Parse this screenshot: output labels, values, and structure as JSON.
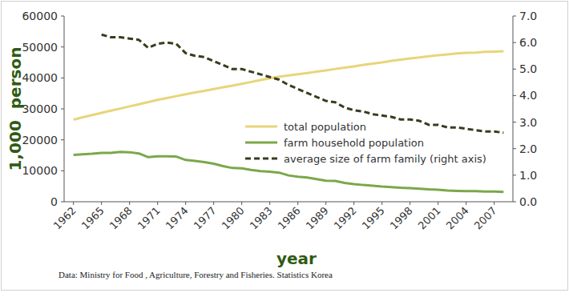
{
  "chart_data": {
    "type": "line",
    "x_label": "year",
    "y_label": "1,000  person",
    "source": "Data: Ministry for Food , Agriculture, Forestry and Fisheries. Statistics Korea",
    "x": [
      1962,
      1963,
      1964,
      1965,
      1966,
      1967,
      1968,
      1969,
      1970,
      1971,
      1972,
      1973,
      1974,
      1975,
      1976,
      1977,
      1978,
      1979,
      1980,
      1981,
      1982,
      1983,
      1984,
      1985,
      1986,
      1987,
      1988,
      1989,
      1990,
      1991,
      1992,
      1993,
      1994,
      1995,
      1996,
      1997,
      1998,
      1999,
      2000,
      2001,
      2002,
      2003,
      2004,
      2005,
      2006,
      2007,
      2008
    ],
    "xlim": [
      1961,
      2009
    ],
    "xticks": [
      1962,
      1965,
      1968,
      1971,
      1974,
      1977,
      1980,
      1983,
      1986,
      1989,
      1992,
      1995,
      1998,
      2001,
      2004,
      2007
    ],
    "ylim": [
      0,
      60000
    ],
    "yticks": [
      0,
      10000,
      20000,
      30000,
      40000,
      50000,
      60000
    ],
    "y2lim": [
      0,
      7
    ],
    "y2ticks": [
      {
        "value": 0,
        "label": "0.0"
      },
      {
        "value": 1,
        "label": "1.0"
      },
      {
        "value": 2,
        "label": "2.0"
      },
      {
        "value": 3,
        "label": "3.0"
      },
      {
        "value": 4,
        "label": "4.0"
      },
      {
        "value": 5,
        "label": "5.0"
      },
      {
        "value": 6,
        "label": "6.0"
      },
      {
        "value": 7,
        "label": "7.0"
      }
    ],
    "grid": false,
    "legend": "right",
    "series": [
      {
        "name": "total population",
        "color": "#e8d57a",
        "line_style": "solid",
        "values": [
          26500,
          27300,
          28000,
          28700,
          29400,
          30100,
          30800,
          31500,
          32200,
          32900,
          33500,
          34100,
          34700,
          35300,
          35800,
          36400,
          37000,
          37500,
          38100,
          38700,
          39300,
          39900,
          40400,
          40800,
          41200,
          41600,
          42000,
          42400,
          42900,
          43300,
          43700,
          44200,
          44600,
          45000,
          45500,
          45900,
          46300,
          46600,
          47000,
          47300,
          47600,
          47900,
          48100,
          48200,
          48400,
          48500,
          48600
        ]
      },
      {
        "name": "farm household population",
        "color": "#7aa84a",
        "line_style": "solid",
        "values": [
          15100,
          15300,
          15500,
          15800,
          15800,
          16100,
          16000,
          15600,
          14400,
          14700,
          14700,
          14600,
          13500,
          13200,
          12800,
          12300,
          11500,
          10900,
          10800,
          10300,
          9900,
          9700,
          9400,
          8500,
          8100,
          7800,
          7300,
          6800,
          6700,
          6100,
          5700,
          5400,
          5200,
          4900,
          4700,
          4500,
          4400,
          4200,
          4000,
          3900,
          3600,
          3500,
          3400,
          3400,
          3300,
          3300,
          3200
        ]
      },
      {
        "name": "average size of farm family (right axis)",
        "color": "#3b3b1e",
        "line_style": "dashed",
        "axis": "y2",
        "values": [
          null,
          null,
          null,
          6.3,
          6.2,
          6.2,
          6.15,
          6.1,
          5.8,
          5.95,
          6.0,
          5.95,
          5.6,
          5.5,
          5.45,
          5.3,
          5.15,
          5.0,
          5.0,
          4.9,
          4.8,
          4.7,
          4.6,
          4.4,
          4.25,
          4.1,
          3.95,
          3.8,
          3.75,
          3.55,
          3.45,
          3.4,
          3.3,
          3.25,
          3.2,
          3.1,
          3.1,
          3.05,
          2.9,
          2.9,
          2.8,
          2.8,
          2.75,
          2.7,
          2.65,
          2.65,
          2.6
        ]
      }
    ]
  }
}
